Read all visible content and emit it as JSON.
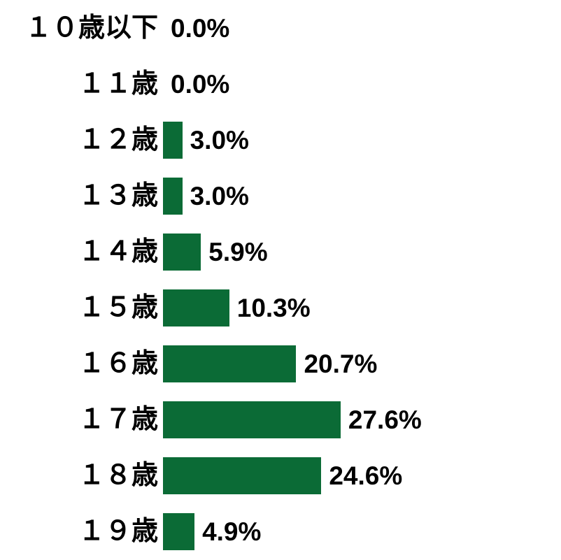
{
  "chart_data": {
    "type": "bar",
    "orientation": "horizontal",
    "title": "",
    "xlabel": "",
    "ylabel": "",
    "categories": [
      "１０歳以下",
      "１１歳",
      "１２歳",
      "１３歳",
      "１４歳",
      "１５歳",
      "１６歳",
      "１７歳",
      "１８歳",
      "１９歳"
    ],
    "values": [
      0.0,
      0.0,
      3.0,
      3.0,
      5.9,
      10.3,
      20.7,
      27.6,
      24.6,
      4.9
    ],
    "value_labels": [
      "0.0%",
      "0.0%",
      "3.0%",
      "3.0%",
      "5.9%",
      "10.3%",
      "20.7%",
      "27.6%",
      "24.6%",
      "4.9%"
    ],
    "xlim": [
      0,
      30
    ],
    "grid": false,
    "legend": false,
    "bar_color": "#0b6b36",
    "label_color": "#000000",
    "background_color": "#ffffff"
  }
}
